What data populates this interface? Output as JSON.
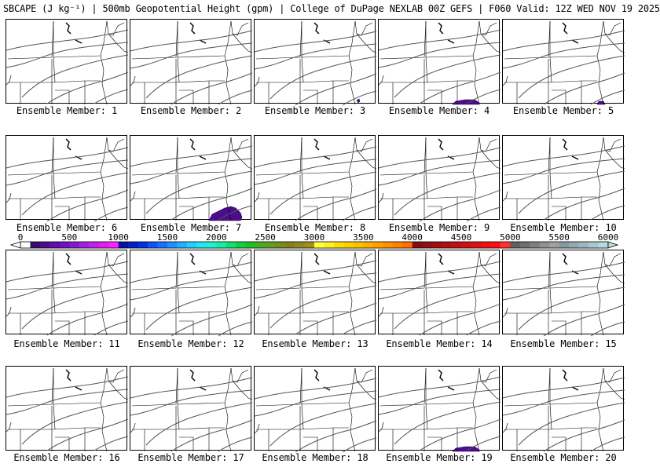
{
  "title": "SBCAPE (J kg⁻¹) | 500mb Geopotential Height (gpm) | College of DuPage NEXLAB 00Z GEFS | F060 Valid: 12Z WED NOV 19 2025",
  "members": [
    {
      "label": "Ensemble Member: 1",
      "cape_blob": "none"
    },
    {
      "label": "Ensemble Member: 2",
      "cape_blob": "none"
    },
    {
      "label": "Ensemble Member: 3",
      "cape_blob": "tiny"
    },
    {
      "label": "Ensemble Member: 4",
      "cape_blob": "small"
    },
    {
      "label": "Ensemble Member: 5",
      "cape_blob": "edge"
    },
    {
      "label": "Ensemble Member: 6",
      "cape_blob": "none"
    },
    {
      "label": "Ensemble Member: 7",
      "cape_blob": "large"
    },
    {
      "label": "Ensemble Member: 8",
      "cape_blob": "none"
    },
    {
      "label": "Ensemble Member: 9",
      "cape_blob": "none"
    },
    {
      "label": "Ensemble Member: 10",
      "cape_blob": "none"
    },
    {
      "label": "Ensemble Member: 11",
      "cape_blob": "none"
    },
    {
      "label": "Ensemble Member: 12",
      "cape_blob": "none"
    },
    {
      "label": "Ensemble Member: 13",
      "cape_blob": "none"
    },
    {
      "label": "Ensemble Member: 14",
      "cape_blob": "none"
    },
    {
      "label": "Ensemble Member: 15",
      "cape_blob": "none"
    },
    {
      "label": "Ensemble Member: 16",
      "cape_blob": "none"
    },
    {
      "label": "Ensemble Member: 17",
      "cape_blob": "none"
    },
    {
      "label": "Ensemble Member: 18",
      "cape_blob": "none"
    },
    {
      "label": "Ensemble Member: 19",
      "cape_blob": "small"
    },
    {
      "label": "Ensemble Member: 20",
      "cape_blob": "none"
    }
  ],
  "colorbar": {
    "ticks": [
      "0",
      "500",
      "1000",
      "1500",
      "2000",
      "2500",
      "3000",
      "3500",
      "4000",
      "4500",
      "5000",
      "5500",
      "6000"
    ],
    "tick_values": [
      0,
      500,
      1000,
      1500,
      2000,
      2500,
      3000,
      3500,
      4000,
      4500,
      5000,
      5500,
      6000
    ],
    "range": [
      0,
      6000
    ],
    "colors": [
      "#ffffff",
      "#3a0a6a",
      "#4c0c8c",
      "#5c10a8",
      "#7010c0",
      "#8818d0",
      "#a020e0",
      "#c020e8",
      "#e020f0",
      "#ff20ff",
      "#0010a0",
      "#0020c0",
      "#0030e0",
      "#1050ff",
      "#1870ff",
      "#2090ff",
      "#20b0ff",
      "#20d0ff",
      "#20e8f0",
      "#20f0d0",
      "#10f0a0",
      "#10e070",
      "#10d040",
      "#20c020",
      "#40b020",
      "#60a020",
      "#709020",
      "#808020",
      "#908820",
      "#a09018",
      "#ffff40",
      "#fff020",
      "#ffe000",
      "#ffd000",
      "#ffc000",
      "#ffb000",
      "#ffa000",
      "#ff9000",
      "#ff8000",
      "#ff7000",
      "#801010",
      "#901010",
      "#a01010",
      "#b01010",
      "#c01010",
      "#d01010",
      "#e01010",
      "#f01010",
      "#ff1010",
      "#ff3030",
      "#606060",
      "#707070",
      "#808080",
      "#909090",
      "#a0a0a0",
      "#8898a0",
      "#90a8b0",
      "#98b8c0",
      "#a8c8d0",
      "#b8d8e0"
    ]
  }
}
